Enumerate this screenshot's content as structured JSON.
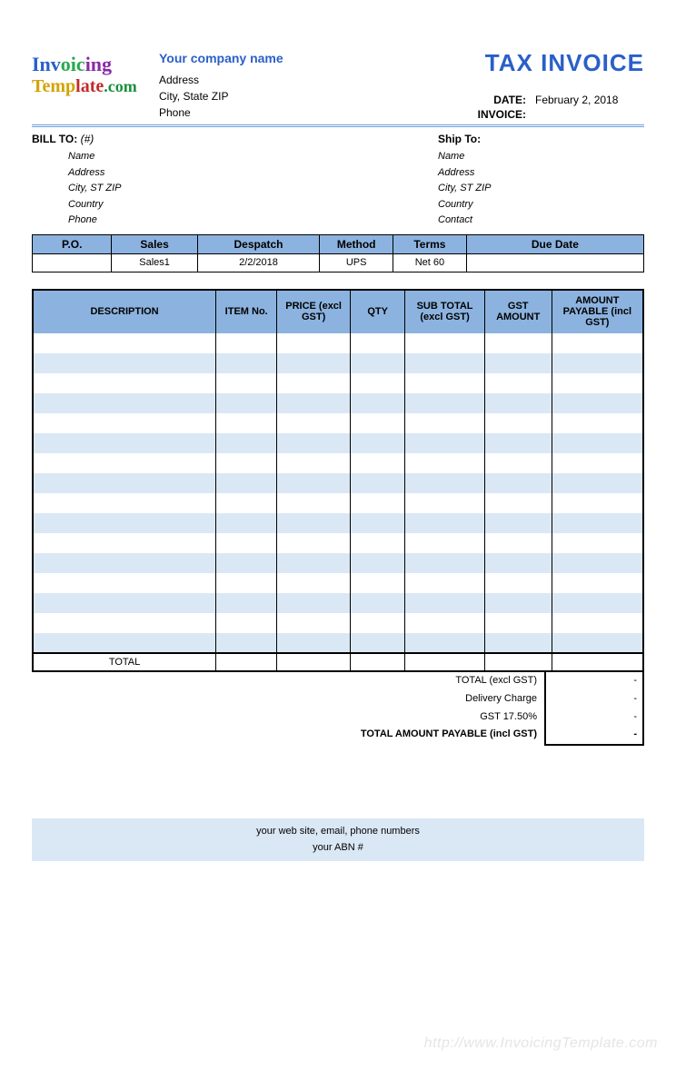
{
  "logo": {
    "part1": "Inv",
    "part2": "oic",
    "part3": "ing",
    "part4": "Temp",
    "part5": "late",
    "part6": ".com"
  },
  "company": {
    "name": "Your company name",
    "address": "Address",
    "city_state_zip": "City, State ZIP",
    "phone": "Phone"
  },
  "title": "TAX INVOICE",
  "meta": {
    "date_label": "DATE:",
    "date_value": "February 2, 2018",
    "invoice_label": "INVOICE:",
    "invoice_value": ""
  },
  "bill_to": {
    "title": "BILL TO:",
    "hash": "(#)",
    "fields": [
      "Name",
      "Address",
      "City, ST ZIP",
      "Country",
      "Phone"
    ]
  },
  "ship_to": {
    "title": "Ship To:",
    "fields": [
      "Name",
      "Address",
      "City, ST ZIP",
      "Country",
      "Contact"
    ]
  },
  "order": {
    "headers": [
      "P.O.",
      "Sales",
      "Despatch",
      "Method",
      "Terms",
      "Due Date"
    ],
    "col_widths": [
      "13%",
      "14%",
      "20%",
      "12%",
      "12%",
      "29%"
    ],
    "row": [
      "",
      "Sales1",
      "2/2/2018",
      "UPS",
      "Net 60",
      ""
    ]
  },
  "items": {
    "headers": [
      "DESCRIPTION",
      "ITEM No.",
      "PRICE (excl GST)",
      "QTY",
      "SUB TOTAL (excl GST)",
      "GST AMOUNT",
      "AMOUNT PAYABLE (incl GST)"
    ],
    "col_widths": [
      "30%",
      "10%",
      "12%",
      "9%",
      "13%",
      "11%",
      "15%"
    ],
    "row_count": 16,
    "alt_row_color": "#dae8f5",
    "header_color": "#8cb3df",
    "total_label": "TOTAL"
  },
  "summary": {
    "rows": [
      {
        "label": "TOTAL (excl GST)",
        "value": "-",
        "bold": false
      },
      {
        "label": "Delivery Charge",
        "value": "-",
        "bold": false
      },
      {
        "label": "GST    17.50%",
        "value": "-",
        "bold": false
      },
      {
        "label": "TOTAL AMOUNT PAYABLE (incl GST)",
        "value": "-",
        "bold": true
      }
    ]
  },
  "footer": {
    "line1": "your web site, email, phone numbers",
    "line2": "your ABN #"
  },
  "watermark": "http://www.InvoicingTemplate.com"
}
